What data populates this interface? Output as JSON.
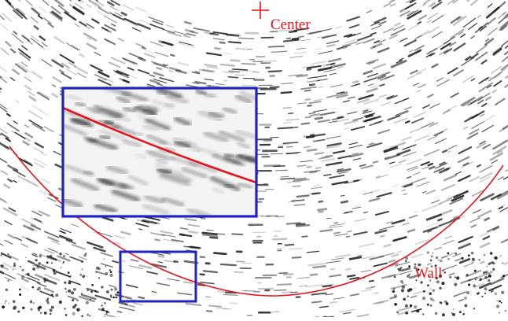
{
  "labels": {
    "center": "Center",
    "wall": "Wall"
  },
  "colors": {
    "background": "#ffffff",
    "streaks": "#1a1a1a",
    "annotation_red": "#e8141b",
    "box_blue": "#1f22c8"
  },
  "icons": {
    "center_marker": "plus-cross"
  }
}
